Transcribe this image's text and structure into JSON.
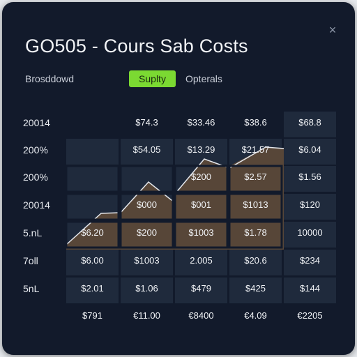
{
  "dialog": {
    "title": "GO505 - Cours Sab Costs",
    "close_glyph": "×"
  },
  "tabs": [
    {
      "label": "Brosddowd",
      "active": false
    },
    {
      "label": "Suplty",
      "active": true
    },
    {
      "label": "Opterals",
      "active": false
    }
  ],
  "colors": {
    "background": "#121a2b",
    "cell": "#1f2a3c",
    "area_fill": "#574638",
    "area_line": "#e4e7ec",
    "active_tab": "#7bd932"
  },
  "grid": {
    "row_labels": [
      "20014",
      "200%",
      "200%",
      "20014",
      "5.nL",
      "7oll",
      "5nL"
    ],
    "rows": [
      [
        "",
        "$74.3",
        "$33.46",
        "$38.6",
        "$68.8"
      ],
      [
        "",
        "$54.05",
        "$13.29",
        "$21.57",
        "$6.04"
      ],
      [
        "",
        "",
        "$200",
        "$2.57",
        "$1.56"
      ],
      [
        "",
        "$000",
        "$001",
        "$1013",
        "$120"
      ],
      [
        "$6.20",
        "$200",
        "$1003",
        "$1.78",
        "10000"
      ],
      [
        "$6.00",
        "$1003",
        "2.005",
        "$20.6",
        "$234"
      ],
      [
        "$2.01",
        "$1.06",
        "$479",
        "$425",
        "$144"
      ]
    ],
    "totals": [
      "$791",
      "€11.00",
      "€8400",
      "€4.09",
      "€2205"
    ]
  }
}
